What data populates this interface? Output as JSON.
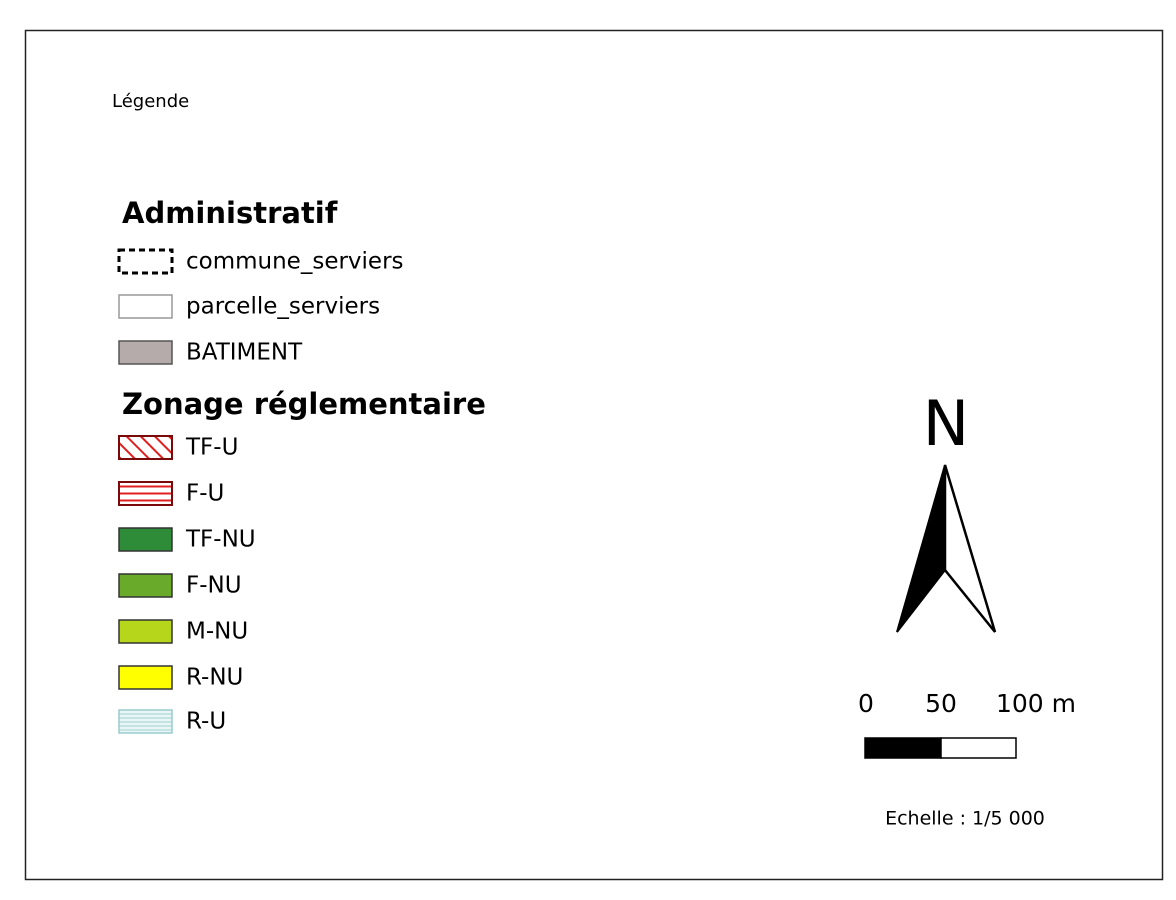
{
  "legend": {
    "title": "Légende",
    "groups": [
      {
        "title": "Administratif",
        "items": [
          "commune_serviers",
          "parcelle_serviers",
          "BATIMENT"
        ]
      },
      {
        "title": "Zonage réglementaire",
        "items": [
          "TF-U",
          "F-U",
          "TF-NU",
          "F-NU",
          "M-NU",
          "R-NU",
          "R-U"
        ]
      }
    ]
  },
  "north_arrow": {
    "label": "N"
  },
  "scale_bar": {
    "labels": [
      "0",
      "50",
      "100 m"
    ],
    "text": "Echelle : 1/5 000"
  }
}
